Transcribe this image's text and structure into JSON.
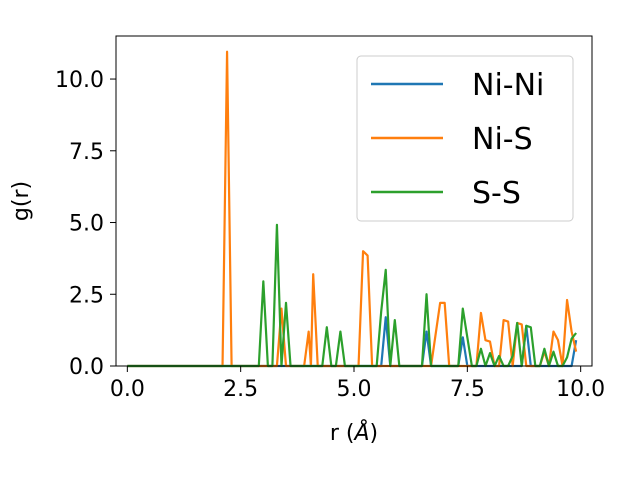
{
  "chart_data": {
    "type": "line",
    "title": "",
    "xlabel_main": "r (",
    "xlabel_unit": "Å",
    "xlabel_close": ")",
    "ylabel": "g(r)",
    "xlim": [
      -0.25,
      10.25
    ],
    "ylim": [
      0,
      11.5
    ],
    "xticks": [
      0.0,
      2.5,
      5.0,
      7.5,
      10.0
    ],
    "xtick_labels": [
      "0.0",
      "2.5",
      "5.0",
      "7.5",
      "10.0"
    ],
    "yticks": [
      0.0,
      2.5,
      5.0,
      7.5,
      10.0
    ],
    "ytick_labels": [
      "0.0",
      "2.5",
      "5.0",
      "7.5",
      "10.0"
    ],
    "legend_position": "top-right",
    "series": [
      {
        "name": "Ni-Ni",
        "color": "#1f77b4",
        "points": [
          [
            0.0,
            0
          ],
          [
            5.6,
            0
          ],
          [
            5.7,
            1.7
          ],
          [
            5.8,
            0
          ],
          [
            6.5,
            0
          ],
          [
            6.6,
            1.2
          ],
          [
            6.7,
            0
          ],
          [
            7.3,
            0
          ],
          [
            7.4,
            1.0
          ],
          [
            7.5,
            0
          ],
          [
            8.7,
            0
          ],
          [
            8.8,
            1.4
          ],
          [
            8.9,
            0
          ],
          [
            9.8,
            0
          ],
          [
            9.9,
            0.9
          ]
        ]
      },
      {
        "name": "Ni-S",
        "color": "#ff7f0e",
        "points": [
          [
            0.0,
            0
          ],
          [
            2.1,
            0
          ],
          [
            2.2,
            10.95
          ],
          [
            2.3,
            0
          ],
          [
            3.3,
            0
          ],
          [
            3.4,
            2.0
          ],
          [
            3.5,
            0
          ],
          [
            3.9,
            0
          ],
          [
            4.0,
            1.2
          ],
          [
            4.05,
            0
          ],
          [
            4.1,
            3.2
          ],
          [
            4.2,
            0
          ],
          [
            5.1,
            0
          ],
          [
            5.2,
            4.0
          ],
          [
            5.3,
            3.85
          ],
          [
            5.4,
            0
          ],
          [
            6.7,
            0
          ],
          [
            6.8,
            1.1
          ],
          [
            6.9,
            2.2
          ],
          [
            7.0,
            2.2
          ],
          [
            7.1,
            0
          ],
          [
            7.7,
            0
          ],
          [
            7.8,
            1.85
          ],
          [
            7.9,
            0.9
          ],
          [
            8.0,
            0.85
          ],
          [
            8.1,
            0
          ],
          [
            8.2,
            0
          ],
          [
            8.3,
            1.6
          ],
          [
            8.4,
            1.55
          ],
          [
            8.5,
            0
          ],
          [
            8.6,
            1.5
          ],
          [
            8.7,
            1.45
          ],
          [
            8.8,
            0
          ],
          [
            9.1,
            0
          ],
          [
            9.2,
            0.5
          ],
          [
            9.3,
            0
          ],
          [
            9.4,
            1.2
          ],
          [
            9.5,
            0.9
          ],
          [
            9.6,
            0
          ],
          [
            9.7,
            2.3
          ],
          [
            9.8,
            1.2
          ],
          [
            9.9,
            0.5
          ]
        ]
      },
      {
        "name": "S-S",
        "color": "#2ca02c",
        "points": [
          [
            0.0,
            0
          ],
          [
            2.9,
            0
          ],
          [
            3.0,
            2.95
          ],
          [
            3.1,
            0
          ],
          [
            3.2,
            0
          ],
          [
            3.3,
            4.92
          ],
          [
            3.4,
            0
          ],
          [
            3.5,
            2.2
          ],
          [
            3.6,
            0
          ],
          [
            4.3,
            0
          ],
          [
            4.4,
            1.35
          ],
          [
            4.5,
            0
          ],
          [
            4.6,
            0
          ],
          [
            4.7,
            1.2
          ],
          [
            4.8,
            0
          ],
          [
            5.5,
            0
          ],
          [
            5.6,
            1.9
          ],
          [
            5.7,
            3.35
          ],
          [
            5.8,
            0
          ],
          [
            5.9,
            1.6
          ],
          [
            6.0,
            0
          ],
          [
            6.5,
            0
          ],
          [
            6.6,
            2.5
          ],
          [
            6.7,
            0
          ],
          [
            7.3,
            0
          ],
          [
            7.4,
            2.0
          ],
          [
            7.5,
            1.0
          ],
          [
            7.6,
            0
          ],
          [
            7.7,
            0
          ],
          [
            7.8,
            0.6
          ],
          [
            7.9,
            0
          ],
          [
            8.0,
            0.45
          ],
          [
            8.1,
            0
          ],
          [
            8.2,
            0.35
          ],
          [
            8.3,
            0
          ],
          [
            8.4,
            0
          ],
          [
            8.5,
            0.35
          ],
          [
            8.6,
            1.5
          ],
          [
            8.7,
            0
          ],
          [
            8.8,
            1.4
          ],
          [
            8.9,
            1.35
          ],
          [
            9.0,
            0
          ],
          [
            9.1,
            0
          ],
          [
            9.2,
            0.6
          ],
          [
            9.3,
            0
          ],
          [
            9.4,
            0.5
          ],
          [
            9.5,
            0
          ],
          [
            9.6,
            0
          ],
          [
            9.7,
            0.3
          ],
          [
            9.8,
            0.95
          ],
          [
            9.9,
            1.15
          ]
        ]
      }
    ]
  }
}
